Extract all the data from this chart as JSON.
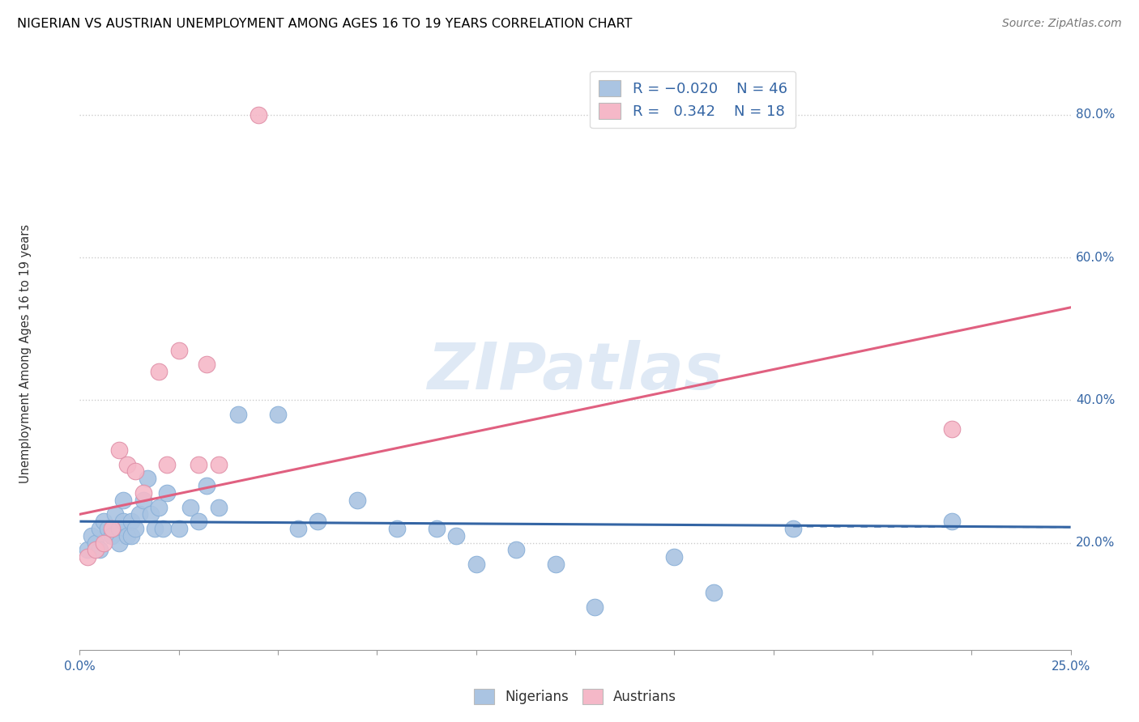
{
  "title": "NIGERIAN VS AUSTRIAN UNEMPLOYMENT AMONG AGES 16 TO 19 YEARS CORRELATION CHART",
  "source": "Source: ZipAtlas.com",
  "ylabel": "Unemployment Among Ages 16 to 19 years",
  "xlim": [
    0.0,
    25.0
  ],
  "ylim": [
    5.0,
    88.0
  ],
  "ytick_vals": [
    20.0,
    40.0,
    60.0,
    80.0
  ],
  "ytick_labels": [
    "20.0%",
    "40.0%",
    "60.0%",
    "80.0%"
  ],
  "nigerian_color": "#aac4e2",
  "austrian_color": "#f5b8c8",
  "nigerian_line_color": "#3465a4",
  "austrian_line_color": "#e06080",
  "watermark": "ZIPatlas",
  "watermark_color": "#c5d8ee",
  "nigerian_x": [
    0.2,
    0.3,
    0.4,
    0.5,
    0.5,
    0.6,
    0.7,
    0.8,
    0.9,
    1.0,
    1.0,
    1.1,
    1.1,
    1.2,
    1.3,
    1.3,
    1.4,
    1.5,
    1.6,
    1.7,
    1.8,
    1.9,
    2.0,
    2.1,
    2.2,
    2.5,
    2.8,
    3.0,
    3.2,
    3.5,
    4.0,
    5.0,
    5.5,
    6.0,
    7.0,
    8.0,
    9.0,
    9.5,
    10.0,
    11.0,
    12.0,
    13.0,
    15.0,
    16.0,
    18.0,
    22.0
  ],
  "nigerian_y": [
    19,
    21,
    20,
    22,
    19,
    23,
    22,
    21,
    24,
    22,
    20,
    23,
    26,
    21,
    23,
    21,
    22,
    24,
    26,
    29,
    24,
    22,
    25,
    22,
    27,
    22,
    25,
    23,
    28,
    25,
    38,
    38,
    22,
    23,
    26,
    22,
    22,
    21,
    17,
    19,
    17,
    11,
    18,
    13,
    22,
    23
  ],
  "austrian_x": [
    0.2,
    0.4,
    0.6,
    0.8,
    1.0,
    1.2,
    1.4,
    1.6,
    2.0,
    2.2,
    2.5,
    3.0,
    3.2,
    3.5,
    4.5,
    22.0
  ],
  "austrian_y": [
    18,
    19,
    20,
    22,
    33,
    31,
    30,
    27,
    44,
    31,
    47,
    31,
    45,
    31,
    80,
    36
  ],
  "nigerian_trend_x": [
    0.0,
    25.0
  ],
  "nigerian_trend_y": [
    23.0,
    22.2
  ],
  "austrian_trend_x": [
    0.0,
    25.0
  ],
  "austrian_trend_y": [
    24.0,
    53.0
  ]
}
